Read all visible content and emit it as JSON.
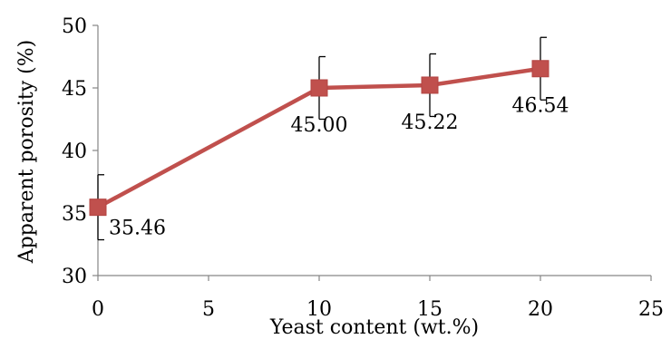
{
  "chart_data": {
    "type": "line",
    "title": "",
    "xlabel": "Yeast content (wt.%)",
    "ylabel": "Apparent porosity (%)",
    "xlim": [
      0,
      25
    ],
    "ylim": [
      30,
      50
    ],
    "xticks": [
      0,
      5,
      10,
      15,
      20,
      25
    ],
    "yticks": [
      30,
      35,
      40,
      45,
      50
    ],
    "xtick_labels": [
      "0",
      "5",
      "10",
      "15",
      "20",
      "25"
    ],
    "ytick_labels": [
      "30",
      "35",
      "40",
      "45",
      "50"
    ],
    "grid": false,
    "legend": "none",
    "series": [
      {
        "x": [
          0,
          10,
          15,
          20
        ],
        "y": [
          35.46,
          45.0,
          45.22,
          46.54
        ],
        "error": [
          2.6,
          2.5,
          2.5,
          2.5
        ],
        "data_labels": [
          "35.46",
          "45.00",
          "45.22",
          "46.54"
        ],
        "color": "#c0504d",
        "marker": "square"
      }
    ]
  }
}
